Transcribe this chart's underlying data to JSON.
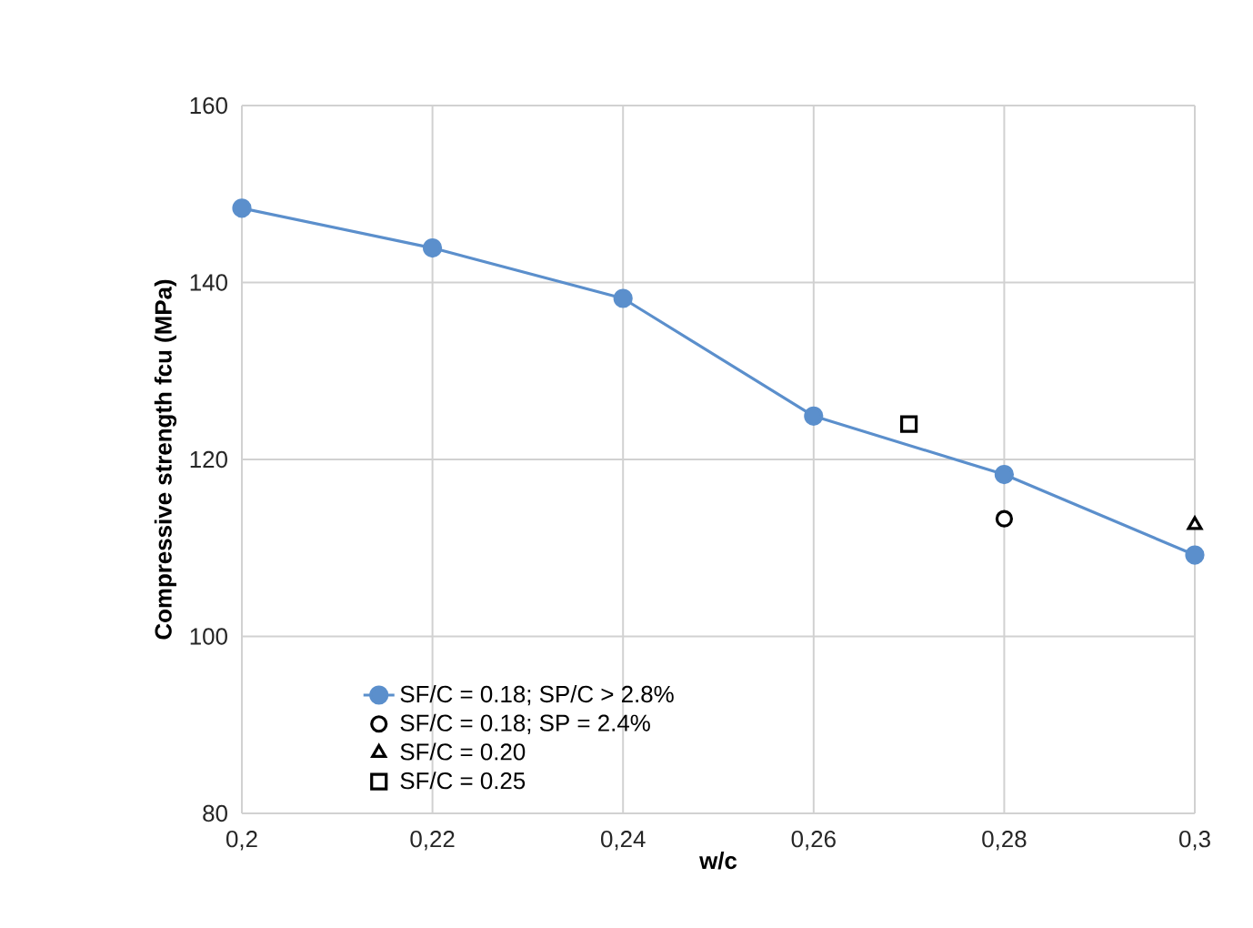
{
  "chart_data": {
    "type": "line",
    "xlabel": "w/c",
    "ylabel": "Compressive strength fcu (MPa)",
    "xlim": [
      0.2,
      0.3
    ],
    "ylim": [
      80,
      160
    ],
    "xticks": [
      {
        "value": 0.2,
        "label": "0,2"
      },
      {
        "value": 0.22,
        "label": "0,22"
      },
      {
        "value": 0.24,
        "label": "0,24"
      },
      {
        "value": 0.26,
        "label": "0,26"
      },
      {
        "value": 0.28,
        "label": "0,28"
      },
      {
        "value": 0.3,
        "label": "0,3"
      }
    ],
    "yticks": [
      80,
      100,
      120,
      140,
      160
    ],
    "grid": true,
    "legend": "bottom left",
    "series": [
      {
        "name": "SF/C = 0.18; SP/C > 2.8%",
        "marker": "circle",
        "color": "#5b8fcc",
        "x": [
          0.2,
          0.22,
          0.24,
          0.26,
          0.28,
          0.3
        ],
        "values": [
          148.4,
          143.9,
          138.2,
          124.9,
          118.3,
          109.2
        ]
      },
      {
        "name": "SF/C = 0.18; SP = 2.4%",
        "type": "scatter",
        "marker": "circle",
        "color": "#000000",
        "x": [
          0.28
        ],
        "values": [
          113.3
        ]
      },
      {
        "name": "SF/C = 0.20",
        "type": "scatter",
        "marker": "triangle",
        "color": "#000000",
        "x": [
          0.3
        ],
        "values": [
          112.6
        ]
      },
      {
        "name": "SF/C = 0.25",
        "type": "scatter",
        "marker": "square",
        "color": "#000000",
        "x": [
          0.27
        ],
        "values": [
          124.0
        ]
      }
    ]
  }
}
